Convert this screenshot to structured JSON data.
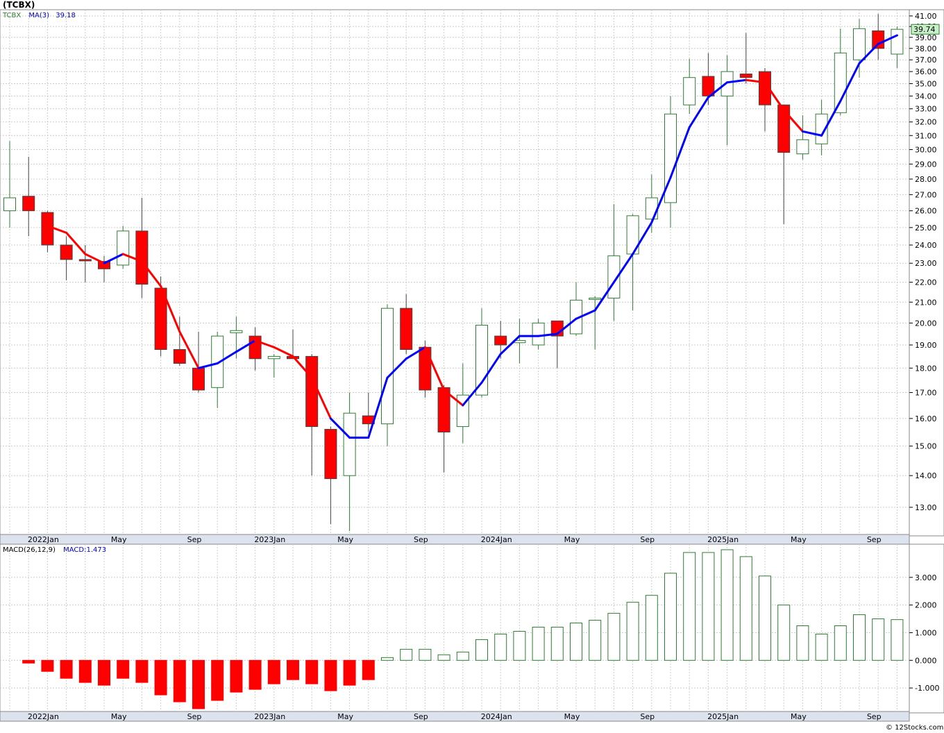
{
  "title": "(TCBX)",
  "credit": "© 12Stocks.com",
  "price_legend": {
    "symbol": "TCBX",
    "ma_label": "MA(3)",
    "ma_value": "39.18"
  },
  "macd_legend": {
    "label": "MACD(26,12,9)",
    "value_label": "MACD:1.473"
  },
  "last_price": "39.74",
  "colors": {
    "up_outline": "#2e7d32",
    "down_fill": "#ff0000",
    "ma_up": "#0000ff",
    "ma_down": "#ff0000",
    "grid": "#cccccc"
  },
  "chart_data": [
    {
      "type": "candlestick",
      "interval": "monthly",
      "y_ticks": [
        "13.00",
        "14.00",
        "15.00",
        "16.00",
        "17.00",
        "18.00",
        "19.00",
        "20.00",
        "21.00",
        "22.00",
        "23.00",
        "24.00",
        "25.00",
        "26.00",
        "27.00",
        "28.00",
        "29.00",
        "30.00",
        "31.00",
        "32.00",
        "33.00",
        "34.00",
        "35.00",
        "36.00",
        "37.00",
        "38.00",
        "39.00",
        "40.00",
        "41.00"
      ],
      "y_scale": "log",
      "ylim": [
        12.2,
        41.6
      ],
      "x_ticks": [
        {
          "i": 2,
          "label": "2022Jan"
        },
        {
          "i": 6,
          "label": "May"
        },
        {
          "i": 10,
          "label": "Sep"
        },
        {
          "i": 14,
          "label": "2023Jan"
        },
        {
          "i": 18,
          "label": "May"
        },
        {
          "i": 22,
          "label": "Sep"
        },
        {
          "i": 26,
          "label": "2024Jan"
        },
        {
          "i": 30,
          "label": "May"
        },
        {
          "i": 34,
          "label": "Sep"
        },
        {
          "i": 38,
          "label": "2025Jan"
        },
        {
          "i": 42,
          "label": "May"
        },
        {
          "i": 46,
          "label": "Sep"
        }
      ],
      "ohlc": [
        {
          "o": 26.0,
          "h": 30.6,
          "l": 25.0,
          "c": 26.8
        },
        {
          "o": 26.9,
          "h": 29.5,
          "l": 24.5,
          "c": 26.0
        },
        {
          "o": 25.9,
          "h": 26.0,
          "l": 23.6,
          "c": 24.0
        },
        {
          "o": 24.0,
          "h": 24.5,
          "l": 22.1,
          "c": 23.2
        },
        {
          "o": 23.2,
          "h": 24.0,
          "l": 22.0,
          "c": 23.15
        },
        {
          "o": 23.1,
          "h": 23.4,
          "l": 22.0,
          "c": 22.7
        },
        {
          "o": 22.9,
          "h": 25.1,
          "l": 22.7,
          "c": 24.8
        },
        {
          "o": 24.8,
          "h": 26.8,
          "l": 21.2,
          "c": 21.9
        },
        {
          "o": 21.7,
          "h": 22.3,
          "l": 18.5,
          "c": 18.8
        },
        {
          "o": 18.8,
          "h": 20.3,
          "l": 18.1,
          "c": 18.2
        },
        {
          "o": 18.0,
          "h": 19.6,
          "l": 17.0,
          "c": 17.1
        },
        {
          "o": 17.2,
          "h": 19.6,
          "l": 16.4,
          "c": 19.4
        },
        {
          "o": 19.55,
          "h": 20.3,
          "l": 18.4,
          "c": 19.65
        },
        {
          "o": 19.4,
          "h": 19.8,
          "l": 17.9,
          "c": 18.4
        },
        {
          "o": 18.4,
          "h": 18.6,
          "l": 17.6,
          "c": 18.5
        },
        {
          "o": 18.5,
          "h": 19.7,
          "l": 18.4,
          "c": 18.4
        },
        {
          "o": 18.5,
          "h": 18.6,
          "l": 14.0,
          "c": 15.7
        },
        {
          "o": 15.6,
          "h": 15.7,
          "l": 12.5,
          "c": 13.9
        },
        {
          "o": 14.0,
          "h": 17.0,
          "l": 12.3,
          "c": 16.2
        },
        {
          "o": 16.1,
          "h": 17.0,
          "l": 15.5,
          "c": 15.8
        },
        {
          "o": 15.8,
          "h": 20.9,
          "l": 15.0,
          "c": 20.7
        },
        {
          "o": 20.7,
          "h": 21.4,
          "l": 18.6,
          "c": 18.8
        },
        {
          "o": 18.9,
          "h": 19.2,
          "l": 16.8,
          "c": 17.1
        },
        {
          "o": 17.2,
          "h": 17.3,
          "l": 14.1,
          "c": 15.5
        },
        {
          "o": 15.7,
          "h": 18.2,
          "l": 15.1,
          "c": 16.9
        },
        {
          "o": 16.9,
          "h": 20.7,
          "l": 16.8,
          "c": 19.9
        },
        {
          "o": 19.4,
          "h": 20.1,
          "l": 18.4,
          "c": 19.0
        },
        {
          "o": 19.1,
          "h": 20.2,
          "l": 18.2,
          "c": 19.2
        },
        {
          "o": 19.0,
          "h": 20.2,
          "l": 18.8,
          "c": 20.0
        },
        {
          "o": 20.1,
          "h": 20.1,
          "l": 18.0,
          "c": 19.4
        },
        {
          "o": 19.5,
          "h": 22.0,
          "l": 19.4,
          "c": 21.1
        },
        {
          "o": 21.2,
          "h": 21.3,
          "l": 18.8,
          "c": 21.2
        },
        {
          "o": 21.2,
          "h": 26.4,
          "l": 20.1,
          "c": 23.4
        },
        {
          "o": 23.5,
          "h": 25.8,
          "l": 20.6,
          "c": 25.7
        },
        {
          "o": 25.5,
          "h": 28.3,
          "l": 24.7,
          "c": 26.8
        },
        {
          "o": 26.5,
          "h": 34.0,
          "l": 25.0,
          "c": 32.6
        },
        {
          "o": 33.3,
          "h": 37.1,
          "l": 32.6,
          "c": 35.5
        },
        {
          "o": 35.6,
          "h": 37.6,
          "l": 33.3,
          "c": 34.0
        },
        {
          "o": 34.0,
          "h": 37.4,
          "l": 30.3,
          "c": 36.0
        },
        {
          "o": 35.8,
          "h": 39.4,
          "l": 35.0,
          "c": 35.5
        },
        {
          "o": 36.0,
          "h": 36.3,
          "l": 31.3,
          "c": 33.3
        },
        {
          "o": 33.3,
          "h": 33.3,
          "l": 25.2,
          "c": 29.8
        },
        {
          "o": 29.7,
          "h": 32.5,
          "l": 29.3,
          "c": 30.7
        },
        {
          "o": 30.4,
          "h": 33.7,
          "l": 29.6,
          "c": 32.6
        },
        {
          "o": 32.7,
          "h": 39.8,
          "l": 32.5,
          "c": 37.6
        },
        {
          "o": 37.0,
          "h": 40.7,
          "l": 35.5,
          "c": 39.8
        },
        {
          "o": 39.6,
          "h": 41.2,
          "l": 37.0,
          "c": 38.0
        },
        {
          "o": 37.5,
          "h": 40.0,
          "l": 36.3,
          "c": 39.74
        }
      ],
      "ma": [
        null,
        null,
        25.1,
        24.7,
        23.5,
        23.0,
        23.5,
        23.1,
        21.8,
        19.6,
        18.0,
        18.2,
        18.7,
        19.2,
        18.9,
        18.5,
        17.6,
        16.0,
        15.3,
        15.3,
        17.6,
        18.4,
        18.9,
        17.1,
        16.5,
        17.4,
        18.6,
        19.4,
        19.4,
        19.5,
        20.2,
        20.6,
        22.0,
        23.5,
        25.3,
        28.1,
        31.6,
        33.9,
        35.1,
        35.3,
        35.1,
        32.9,
        31.3,
        31.0,
        33.6,
        36.7,
        38.4,
        39.18
      ],
      "ma_trend": [
        0,
        0,
        -1,
        -1,
        -1,
        -1,
        1,
        -1,
        -1,
        -1,
        -1,
        1,
        1,
        1,
        -1,
        -1,
        -1,
        -1,
        1,
        1,
        1,
        1,
        1,
        -1,
        -1,
        1,
        1,
        1,
        1,
        1,
        1,
        1,
        1,
        1,
        1,
        1,
        1,
        1,
        1,
        1,
        -1,
        -1,
        -1,
        1,
        1,
        1,
        1,
        1
      ]
    },
    {
      "type": "bar",
      "name": "MACD(26,12,9)",
      "y_ticks": [
        "-1.000",
        "0.000",
        "1.000",
        "2.000",
        "3.000"
      ],
      "ylim": [
        -1.85,
        4.2
      ],
      "values": [
        null,
        -0.1,
        -0.4,
        -0.65,
        -0.8,
        -0.9,
        -0.65,
        -0.8,
        -1.25,
        -1.5,
        -1.75,
        -1.45,
        -1.15,
        -1.05,
        -0.85,
        -0.7,
        -0.85,
        -1.1,
        -0.9,
        -0.7,
        0.1,
        0.4,
        0.4,
        0.2,
        0.3,
        0.75,
        0.95,
        1.05,
        1.2,
        1.2,
        1.35,
        1.45,
        1.7,
        2.1,
        2.35,
        3.15,
        3.9,
        3.9,
        4.0,
        3.75,
        3.05,
        2.0,
        1.25,
        0.95,
        1.25,
        1.65,
        1.5,
        1.473
      ]
    }
  ]
}
